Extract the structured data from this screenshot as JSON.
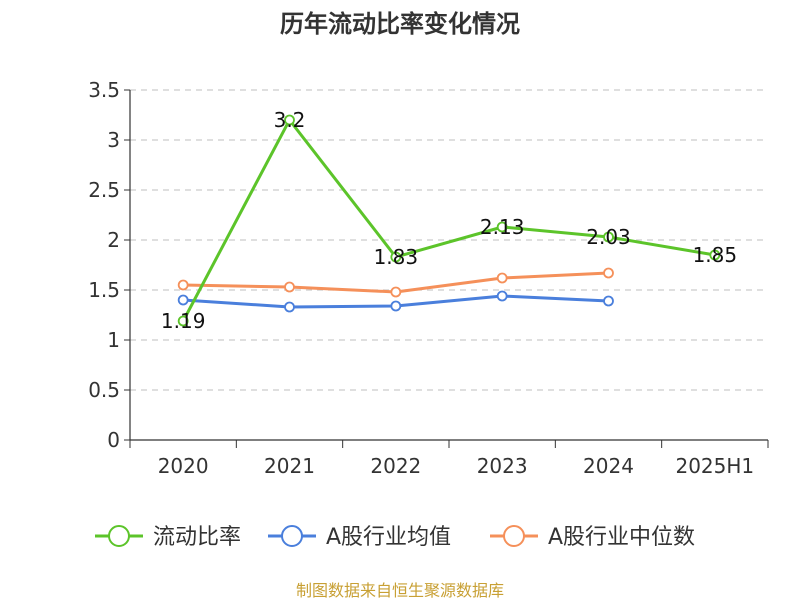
{
  "chart_data": {
    "type": "line",
    "title": "历年流动比率变化情况",
    "categories": [
      "2020",
      "2021",
      "2022",
      "2023",
      "2024",
      "2025H1"
    ],
    "ylim": [
      0,
      3.5
    ],
    "yticks": [
      "0",
      "0.5",
      "1",
      "1.5",
      "2",
      "2.5",
      "3",
      "3.5"
    ],
    "grid": true,
    "legend_position": "bottom",
    "series": [
      {
        "name": "流动比率",
        "color": "#5cc42a",
        "values": [
          1.19,
          3.2,
          1.83,
          2.13,
          2.03,
          1.85
        ],
        "labels": [
          "1.19",
          "3.2",
          "1.83",
          "2.13",
          "2.03",
          "1.85"
        ]
      },
      {
        "name": "A股行业均值",
        "color": "#4a7fdc",
        "values": [
          1.4,
          1.33,
          1.34,
          1.44,
          1.39,
          null
        ]
      },
      {
        "name": "A股行业中位数",
        "color": "#f5905a",
        "values": [
          1.55,
          1.53,
          1.48,
          1.62,
          1.67,
          null
        ]
      }
    ]
  },
  "source_note": "制图数据来自恒生聚源数据库"
}
